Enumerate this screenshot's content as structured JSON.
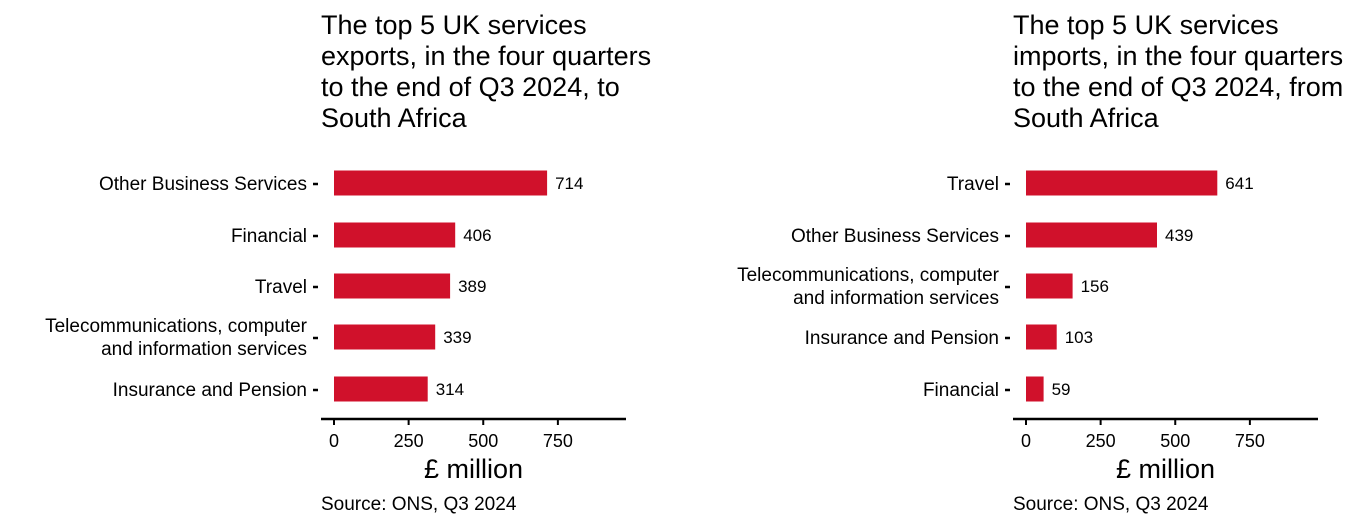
{
  "chart_data": [
    {
      "type": "bar",
      "orientation": "horizontal",
      "title": "The top 5 UK services exports, in the four quarters to the end of Q3 2024, to South Africa",
      "categories": [
        "Other Business Services",
        "Financial",
        "Travel",
        "Telecommunications, computer and information services",
        "Insurance and Pension"
      ],
      "values": [
        714,
        406,
        389,
        339,
        314
      ],
      "xlabel": "£ million",
      "xticks": [
        0,
        250,
        500,
        750
      ],
      "xlim": [
        0,
        950
      ],
      "bar_color": "#d0112b",
      "grid": false,
      "source": "Source: ONS, Q3 2024"
    },
    {
      "type": "bar",
      "orientation": "horizontal",
      "title": "The top 5 UK services imports, in the four quarters to the end of Q3 2024, from South Africa",
      "categories": [
        "Travel",
        "Other Business Services",
        "Telecommunications, computer and information services",
        "Insurance and Pension",
        "Financial"
      ],
      "values": [
        641,
        439,
        156,
        103,
        59
      ],
      "xlabel": "£ million",
      "xticks": [
        0,
        250,
        500,
        750
      ],
      "xlim": [
        0,
        950
      ],
      "bar_color": "#d0112b",
      "grid": false,
      "source": "Source: ONS, Q3 2024"
    }
  ]
}
